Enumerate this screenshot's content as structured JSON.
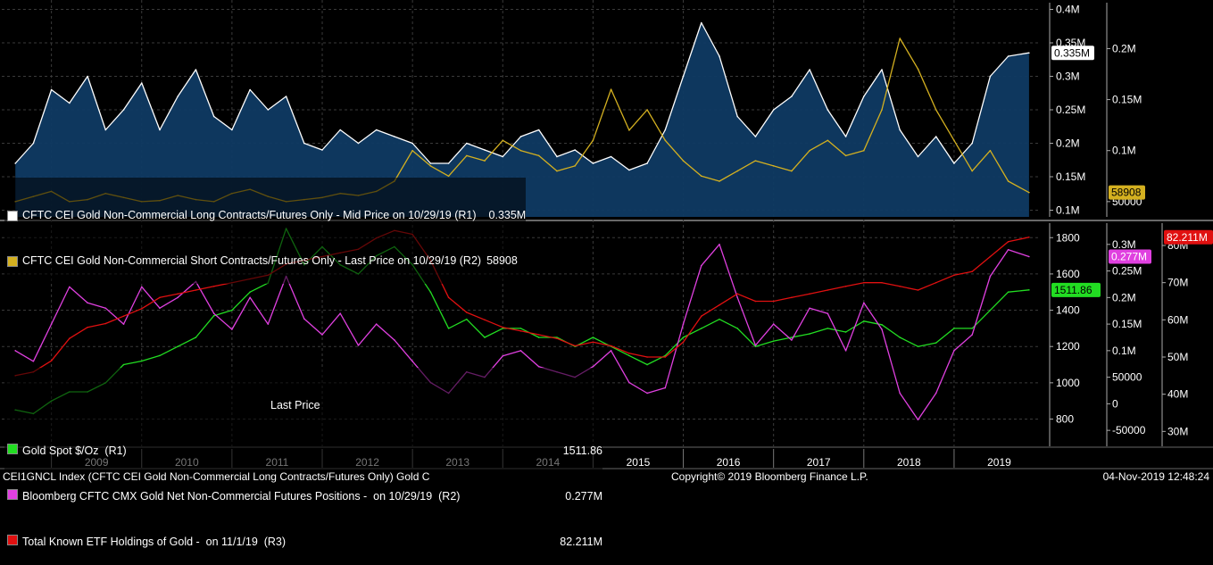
{
  "chart_data": [
    {
      "type": "area",
      "panel": "top",
      "series": [
        {
          "name": "CFTC CEI Gold Non-Commercial Long Contracts/Futures Only - Mid Price on 10/29/19 (R1) 0.335M",
          "axis": "R1",
          "color": "#ffffff",
          "fill": "#0f3a63",
          "x": [
            2008.6,
            2008.8,
            2009.0,
            2009.2,
            2009.4,
            2009.6,
            2009.8,
            2010.0,
            2010.2,
            2010.4,
            2010.6,
            2010.8,
            2011.0,
            2011.2,
            2011.4,
            2011.6,
            2011.8,
            2012.0,
            2012.2,
            2012.4,
            2012.6,
            2012.8,
            2013.0,
            2013.2,
            2013.4,
            2013.6,
            2013.8,
            2014.0,
            2014.2,
            2014.4,
            2014.6,
            2014.8,
            2015.0,
            2015.2,
            2015.4,
            2015.6,
            2015.8,
            2016.0,
            2016.2,
            2016.4,
            2016.6,
            2016.8,
            2017.0,
            2017.2,
            2017.4,
            2017.6,
            2017.8,
            2018.0,
            2018.2,
            2018.4,
            2018.6,
            2018.8,
            2019.0,
            2019.2,
            2019.4,
            2019.6,
            2019.83
          ],
          "values": [
            0.17,
            0.2,
            0.28,
            0.26,
            0.3,
            0.22,
            0.25,
            0.29,
            0.22,
            0.27,
            0.31,
            0.24,
            0.22,
            0.28,
            0.25,
            0.27,
            0.2,
            0.19,
            0.22,
            0.2,
            0.22,
            0.21,
            0.2,
            0.17,
            0.17,
            0.2,
            0.19,
            0.18,
            0.21,
            0.22,
            0.18,
            0.19,
            0.17,
            0.18,
            0.16,
            0.17,
            0.22,
            0.3,
            0.38,
            0.33,
            0.24,
            0.21,
            0.25,
            0.27,
            0.31,
            0.25,
            0.21,
            0.27,
            0.31,
            0.22,
            0.18,
            0.21,
            0.17,
            0.2,
            0.3,
            0.33,
            0.335
          ]
        },
        {
          "name": "CFTC CEI Gold Non-Commercial Short Contracts/Futures Only - Last Price on 10/29/19 (R2) 58908",
          "axis": "R2",
          "color": "#d4b020",
          "x": [
            2008.6,
            2008.8,
            2009.0,
            2009.2,
            2009.4,
            2009.6,
            2009.8,
            2010.0,
            2010.2,
            2010.4,
            2010.6,
            2010.8,
            2011.0,
            2011.2,
            2011.4,
            2011.6,
            2011.8,
            2012.0,
            2012.2,
            2012.4,
            2012.6,
            2012.8,
            2013.0,
            2013.2,
            2013.4,
            2013.6,
            2013.8,
            2014.0,
            2014.2,
            2014.4,
            2014.6,
            2014.8,
            2015.0,
            2015.2,
            2015.4,
            2015.6,
            2015.8,
            2016.0,
            2016.2,
            2016.4,
            2016.6,
            2016.8,
            2017.0,
            2017.2,
            2017.4,
            2017.6,
            2017.8,
            2018.0,
            2018.2,
            2018.4,
            2018.6,
            2018.8,
            2019.0,
            2019.2,
            2019.4,
            2019.6,
            2019.83
          ],
          "values": [
            50000,
            55000,
            60000,
            50000,
            52000,
            58000,
            54000,
            50000,
            51000,
            56000,
            52000,
            50000,
            58000,
            62000,
            55000,
            50000,
            52000,
            54000,
            58000,
            56000,
            60000,
            70000,
            100000,
            85000,
            75000,
            95000,
            90000,
            110000,
            100000,
            95000,
            80000,
            85000,
            110000,
            160000,
            120000,
            140000,
            110000,
            90000,
            75000,
            70000,
            80000,
            90000,
            85000,
            80000,
            100000,
            110000,
            95000,
            100000,
            140000,
            210000,
            180000,
            140000,
            110000,
            80000,
            100000,
            70000,
            58908
          ]
        }
      ],
      "axes": {
        "R1": {
          "ticks": [
            "0.1M",
            "0.15M",
            "0.2M",
            "0.25M",
            "0.3M",
            "0.35M",
            "0.4M"
          ],
          "range": [
            0.09,
            0.41
          ]
        },
        "R2": {
          "ticks": [
            "50000",
            "0.1M",
            "0.15M",
            "0.2M"
          ],
          "range": [
            35000,
            245000
          ]
        }
      },
      "legend": {
        "rows": [
          {
            "color": "#ffffff",
            "label": "CFTC CEI Gold Non-Commercial Long Contracts/Futures Only - Mid Price on 10/29/19 (R1)",
            "value": "0.335M"
          },
          {
            "color": "#d4b020",
            "label": "CFTC CEI Gold Non-Commercial Short Contracts/Futures Only - Last Price on 10/29/19 (R2)",
            "value": "58908"
          }
        ]
      },
      "badges": [
        {
          "text": "0.335M",
          "bg": "#ffffff",
          "fg": "#000000",
          "axis": "R1",
          "value": 0.335
        },
        {
          "text": "58908",
          "bg": "#d4b020",
          "fg": "#000000",
          "axis": "R2",
          "value": 58908
        }
      ]
    },
    {
      "type": "line",
      "panel": "bottom",
      "series": [
        {
          "name": "Gold Spot $/Oz (R1)",
          "axis": "R1",
          "color": "#22dd22",
          "x": [
            2008.6,
            2008.8,
            2009.0,
            2009.2,
            2009.4,
            2009.6,
            2009.8,
            2010.0,
            2010.2,
            2010.4,
            2010.6,
            2010.8,
            2011.0,
            2011.2,
            2011.4,
            2011.6,
            2011.8,
            2012.0,
            2012.2,
            2012.4,
            2012.6,
            2012.8,
            2013.0,
            2013.2,
            2013.4,
            2013.6,
            2013.8,
            2014.0,
            2014.2,
            2014.4,
            2014.6,
            2014.8,
            2015.0,
            2015.2,
            2015.4,
            2015.6,
            2015.8,
            2016.0,
            2016.2,
            2016.4,
            2016.6,
            2016.8,
            2017.0,
            2017.2,
            2017.4,
            2017.6,
            2017.8,
            2018.0,
            2018.2,
            2018.4,
            2018.6,
            2018.8,
            2019.0,
            2019.2,
            2019.4,
            2019.6,
            2019.83
          ],
          "values": [
            850,
            830,
            900,
            950,
            950,
            1000,
            1100,
            1120,
            1150,
            1200,
            1250,
            1370,
            1400,
            1500,
            1550,
            1850,
            1650,
            1750,
            1650,
            1600,
            1700,
            1750,
            1650,
            1500,
            1300,
            1350,
            1250,
            1300,
            1300,
            1250,
            1250,
            1200,
            1250,
            1200,
            1150,
            1100,
            1150,
            1250,
            1300,
            1350,
            1300,
            1200,
            1230,
            1250,
            1270,
            1300,
            1280,
            1340,
            1320,
            1250,
            1200,
            1220,
            1300,
            1300,
            1400,
            1500,
            1511.86
          ]
        },
        {
          "name": "Bloomberg CFTC CMX Gold Net Non-Commercial Futures Positions - on 10/29/19 (R2) 0.277M",
          "axis": "R2",
          "color": "#e040e0",
          "x": [
            2008.6,
            2008.8,
            2009.0,
            2009.2,
            2009.4,
            2009.6,
            2009.8,
            2010.0,
            2010.2,
            2010.4,
            2010.6,
            2010.8,
            2011.0,
            2011.2,
            2011.4,
            2011.6,
            2011.8,
            2012.0,
            2012.2,
            2012.4,
            2012.6,
            2012.8,
            2013.0,
            2013.2,
            2013.4,
            2013.6,
            2013.8,
            2014.0,
            2014.2,
            2014.4,
            2014.6,
            2014.8,
            2015.0,
            2015.2,
            2015.4,
            2015.6,
            2015.8,
            2016.0,
            2016.2,
            2016.4,
            2016.6,
            2016.8,
            2017.0,
            2017.2,
            2017.4,
            2017.6,
            2017.8,
            2018.0,
            2018.2,
            2018.4,
            2018.6,
            2018.8,
            2019.0,
            2019.2,
            2019.4,
            2019.6,
            2019.83
          ],
          "values": [
            100000,
            80000,
            150000,
            220000,
            190000,
            180000,
            150000,
            220000,
            180000,
            200000,
            230000,
            170000,
            140000,
            200000,
            150000,
            240000,
            160000,
            130000,
            170000,
            110000,
            150000,
            120000,
            80000,
            40000,
            20000,
            60000,
            50000,
            90000,
            100000,
            70000,
            60000,
            50000,
            70000,
            100000,
            40000,
            20000,
            30000,
            150000,
            260000,
            300000,
            200000,
            110000,
            150000,
            120000,
            180000,
            170000,
            100000,
            190000,
            140000,
            20000,
            -30000,
            20000,
            100000,
            130000,
            240000,
            290000,
            277000
          ]
        },
        {
          "name": "Total Known ETF Holdings of Gold - on 11/1/19 (R3)",
          "axis": "R3",
          "color": "#e01010",
          "x": [
            2008.6,
            2008.8,
            2009.0,
            2009.2,
            2009.4,
            2009.6,
            2009.8,
            2010.0,
            2010.2,
            2010.4,
            2010.6,
            2010.8,
            2011.0,
            2011.2,
            2011.4,
            2011.6,
            2011.8,
            2012.0,
            2012.2,
            2012.4,
            2012.6,
            2012.8,
            2013.0,
            2013.2,
            2013.4,
            2013.6,
            2013.8,
            2014.0,
            2014.2,
            2014.4,
            2014.6,
            2014.8,
            2015.0,
            2015.2,
            2015.4,
            2015.6,
            2015.8,
            2016.0,
            2016.2,
            2016.4,
            2016.6,
            2016.8,
            2017.0,
            2017.2,
            2017.4,
            2017.6,
            2017.8,
            2018.0,
            2018.2,
            2018.4,
            2018.6,
            2018.8,
            2019.0,
            2019.2,
            2019.4,
            2019.6,
            2019.83
          ],
          "values": [
            45,
            46,
            49,
            55,
            58,
            59,
            61,
            63,
            66,
            67,
            68,
            69,
            70,
            71,
            72,
            75,
            76,
            77,
            78,
            79,
            82,
            84,
            83,
            76,
            66,
            62,
            60,
            58,
            57,
            56,
            55,
            53,
            54,
            53,
            51,
            50,
            50,
            54,
            61,
            64,
            67,
            65,
            65,
            66,
            67,
            68,
            69,
            70,
            70,
            69,
            68,
            70,
            72,
            73,
            77,
            81,
            82.211
          ]
        }
      ],
      "axes": {
        "R1": {
          "ticks": [
            "800",
            "1000",
            "1200",
            "1400",
            "1600",
            "1800"
          ],
          "range": [
            650,
            1880
          ]
        },
        "R2": {
          "ticks": [
            "-50000",
            "0",
            "50000",
            "0.1M",
            "0.15M",
            "0.2M",
            "0.25M",
            "0.3M"
          ],
          "range": [
            -80000,
            340000
          ]
        },
        "R3": {
          "ticks": [
            "30M",
            "40M",
            "50M",
            "60M",
            "70M",
            "80M"
          ],
          "range": [
            26,
            86
          ]
        }
      },
      "legend": {
        "title": "Last Price",
        "rows": [
          {
            "color": "#22dd22",
            "label": "Gold Spot $/Oz  (R1)",
            "value": "1511.86"
          },
          {
            "color": "#e040e0",
            "label": "Bloomberg CFTC CMX Gold Net Non-Commercial Futures Positions -  on 10/29/19  (R2)",
            "value": "0.277M"
          },
          {
            "color": "#e01010",
            "label": "Total Known ETF Holdings of Gold -  on 11/1/19  (R3)",
            "value": "82.211M"
          }
        ]
      },
      "badges": [
        {
          "text": "82.211M",
          "bg": "#e01010",
          "fg": "#ffffff",
          "axis": "R3",
          "value": 82.211
        },
        {
          "text": "0.277M",
          "bg": "#e040e0",
          "fg": "#ffffff",
          "axis": "R2",
          "value": 277000
        },
        {
          "text": "1511.86",
          "bg": "#22dd22",
          "fg": "#000000",
          "axis": "R1",
          "value": 1511.86
        }
      ]
    }
  ],
  "x_axis": {
    "range": [
      2008.45,
      2019.95
    ],
    "year_labels": [
      "2009",
      "2010",
      "2011",
      "2012",
      "2013",
      "2014",
      "2015",
      "2016",
      "2017",
      "2018",
      "2019"
    ]
  },
  "footer": {
    "left": "CEI1GNCL Index (CFTC CEI Gold Non-Commercial Long Contracts/Futures Only) Gold C",
    "center": "Copyright© 2019 Bloomberg Finance L.P.",
    "right": "04-Nov-2019 12:48:24"
  }
}
